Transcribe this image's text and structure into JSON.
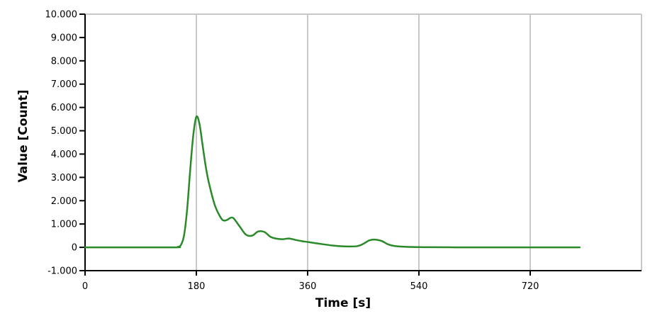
{
  "chart_data": {
    "type": "line",
    "title": "",
    "xlabel": "Time [s]",
    "ylabel": "Value [Count]",
    "xlim": [
      0,
      900
    ],
    "ylim": [
      -1000,
      10000
    ],
    "x_ticks": [
      0,
      180,
      360,
      540,
      720
    ],
    "x_tick_labels": [
      "0",
      "180",
      "360",
      "540",
      "720"
    ],
    "y_ticks": [
      -1000,
      0,
      1000,
      2000,
      3000,
      4000,
      5000,
      6000,
      7000,
      8000,
      9000,
      10000
    ],
    "y_tick_labels": [
      "-1.000",
      "0",
      "1.000",
      "2.000",
      "3.000",
      "4.000",
      "5.000",
      "6.000",
      "7.000",
      "8.000",
      "9.000",
      "10.000"
    ],
    "grid": true,
    "legend": "none",
    "series": [
      {
        "color": "#2a8a2a",
        "x": [
          0,
          140,
          150,
          155,
          160,
          165,
          170,
          175,
          180,
          185,
          190,
          195,
          200,
          210,
          220,
          225,
          230,
          235,
          240,
          250,
          260,
          270,
          280,
          290,
          300,
          310,
          320,
          330,
          340,
          350,
          360,
          380,
          400,
          420,
          440,
          450,
          460,
          470,
          480,
          490,
          500,
          520,
          540,
          560,
          600,
          650,
          720,
          800
        ],
        "y": [
          0,
          0,
          20,
          100,
          500,
          1600,
          3300,
          4800,
          5600,
          5300,
          4400,
          3500,
          2800,
          1800,
          1250,
          1150,
          1180,
          1260,
          1250,
          900,
          550,
          500,
          680,
          660,
          450,
          370,
          350,
          380,
          320,
          270,
          230,
          150,
          80,
          40,
          50,
          150,
          300,
          330,
          270,
          130,
          60,
          20,
          10,
          5,
          0,
          0,
          0,
          0
        ]
      }
    ]
  }
}
